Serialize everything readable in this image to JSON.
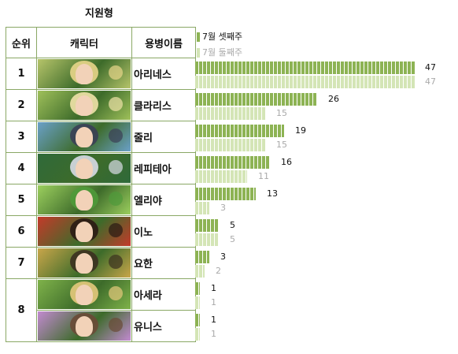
{
  "title": "지원형",
  "headers": {
    "rank": "순위",
    "character": "캐릭터",
    "name": "용병이름"
  },
  "legend": {
    "current": "7월 셋째주",
    "previous": "7월 둘째주"
  },
  "colors": {
    "current": "#8db354",
    "previous": "#d4e5b6",
    "border": "#8aa865"
  },
  "rows": [
    {
      "rank": "1",
      "name": "아리네스",
      "portrait": "character-portrait"
    },
    {
      "rank": "2",
      "name": "클라리스",
      "portrait": "character-portrait"
    },
    {
      "rank": "3",
      "name": "줄리",
      "portrait": "character-portrait"
    },
    {
      "rank": "4",
      "name": "레피테아",
      "portrait": "character-portrait"
    },
    {
      "rank": "5",
      "name": "엘리야",
      "portrait": "character-portrait"
    },
    {
      "rank": "6",
      "name": "이노",
      "portrait": "character-portrait"
    },
    {
      "rank": "7",
      "name": "요한",
      "portrait": "character-portrait"
    },
    {
      "rank": "8",
      "name": "아세라",
      "portrait": "character-portrait"
    },
    {
      "rank": "8",
      "name": "유니스",
      "portrait": "character-portrait"
    }
  ],
  "chart_data": {
    "type": "bar",
    "orientation": "horizontal",
    "categories": [
      "아리네스",
      "클라리스",
      "줄리",
      "레피테아",
      "엘리야",
      "이노",
      "요한",
      "아세라",
      "유니스"
    ],
    "series": [
      {
        "name": "7월 셋째주",
        "values": [
          47,
          26,
          19,
          16,
          13,
          5,
          3,
          1,
          1
        ]
      },
      {
        "name": "7월 둘째주",
        "values": [
          47,
          15,
          15,
          11,
          3,
          5,
          2,
          1,
          1
        ]
      }
    ],
    "legend_position": "top-left"
  }
}
